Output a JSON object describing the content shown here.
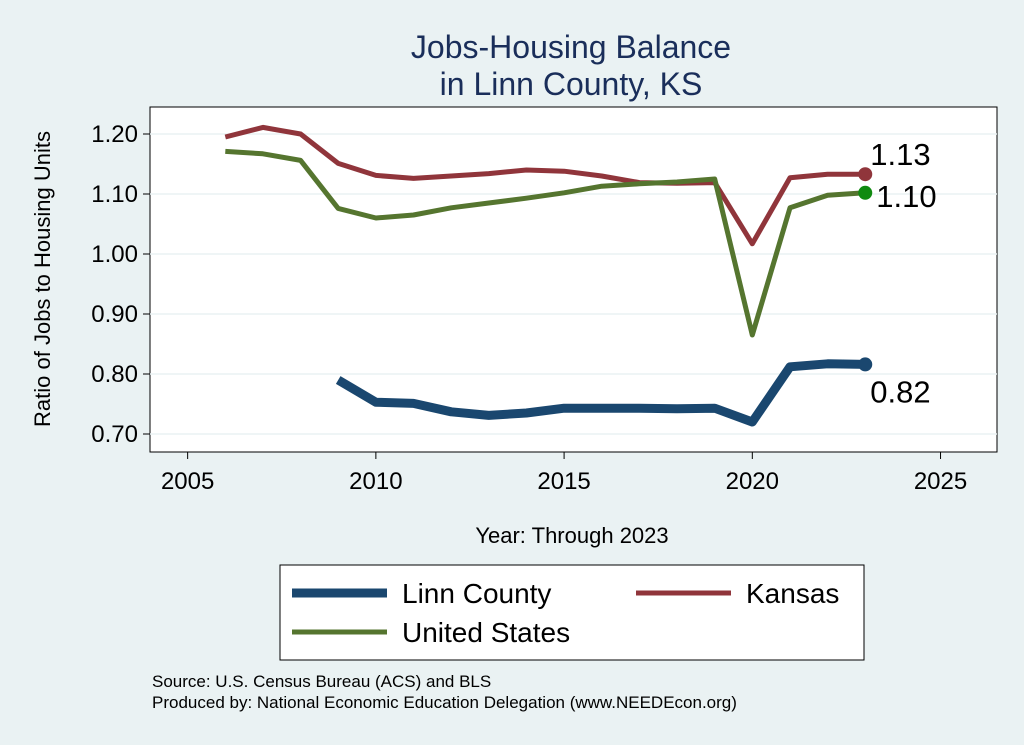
{
  "chart_data": {
    "type": "line",
    "title_line1": "Jobs-Housing Balance",
    "title_line2": "in Linn County, KS",
    "xlabel": "Year: Through 2023",
    "ylabel": "Ratio of Jobs to Housing Units",
    "xlim": [
      2004,
      2026.5
    ],
    "ylim": [
      0.67,
      1.245
    ],
    "xticks": [
      2005,
      2010,
      2015,
      2020,
      2025
    ],
    "xtick_labels": [
      "2005",
      "2010",
      "2015",
      "2020",
      "2025"
    ],
    "yticks": [
      0.7,
      0.8,
      0.9,
      1.0,
      1.1,
      1.2
    ],
    "ytick_labels": [
      "0.70",
      "0.80",
      "0.90",
      "1.00",
      "1.10",
      "1.20"
    ],
    "grid": true,
    "series": [
      {
        "name": "Linn County",
        "color": "#1a476f",
        "x": [
          2009,
          2010,
          2011,
          2012,
          2013,
          2014,
          2015,
          2016,
          2017,
          2018,
          2019,
          2020,
          2021,
          2022,
          2023
        ],
        "values": [
          0.79,
          0.753,
          0.751,
          0.737,
          0.731,
          0.735,
          0.743,
          0.743,
          0.743,
          0.742,
          0.743,
          0.72,
          0.812,
          0.817,
          0.816
        ],
        "end_label": "0.82"
      },
      {
        "name": "Kansas",
        "color": "#90353b",
        "x": [
          2006,
          2007,
          2008,
          2009,
          2010,
          2011,
          2012,
          2013,
          2014,
          2015,
          2016,
          2017,
          2018,
          2019,
          2020,
          2021,
          2022,
          2023
        ],
        "values": [
          1.195,
          1.211,
          1.2,
          1.151,
          1.131,
          1.126,
          1.13,
          1.134,
          1.14,
          1.138,
          1.13,
          1.119,
          1.118,
          1.119,
          1.017,
          1.127,
          1.133,
          1.133
        ],
        "end_label": "1.13"
      },
      {
        "name": "United States",
        "color": "#55752f",
        "x": [
          2006,
          2007,
          2008,
          2009,
          2010,
          2011,
          2012,
          2013,
          2014,
          2015,
          2016,
          2017,
          2018,
          2019,
          2020,
          2021,
          2022,
          2023
        ],
        "values": [
          1.171,
          1.167,
          1.156,
          1.076,
          1.06,
          1.065,
          1.077,
          1.085,
          1.093,
          1.102,
          1.113,
          1.117,
          1.12,
          1.125,
          0.865,
          1.077,
          1.098,
          1.102
        ],
        "end_label": "1.10",
        "end_marker_color": "#108a10"
      }
    ]
  },
  "legend": {
    "items": [
      "Linn County",
      "Kansas",
      "United States"
    ]
  },
  "notes": {
    "source": "Source: U.S. Census Bureau (ACS) and BLS",
    "produced": "Produced by: National Economic Education Delegation (www.NEEDEcon.org)"
  }
}
